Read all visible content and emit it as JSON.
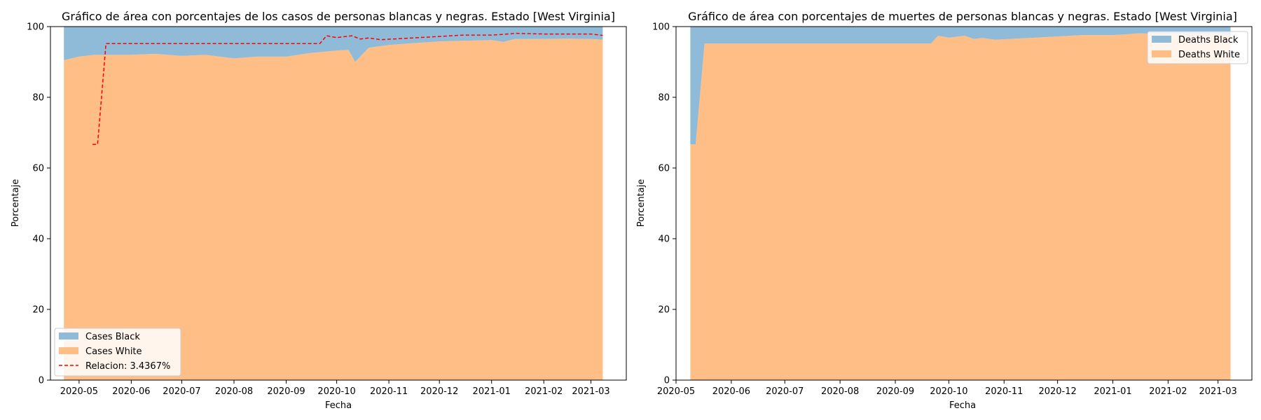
{
  "chart_data": [
    {
      "type": "area",
      "stacked": true,
      "title": "Gráfico de área con porcentajes de los casos de personas blancas y negras. Estado [West Virginia]",
      "xlabel": "Fecha",
      "ylabel": "Porcentaje",
      "ylim": [
        0,
        100
      ],
      "yticks": [
        "0",
        "20",
        "40",
        "60",
        "80",
        "100"
      ],
      "xlim": [
        "2020-04-14",
        "2021-03-22"
      ],
      "xticks": [
        "2020-05",
        "2020-06",
        "2020-07",
        "2020-08",
        "2020-09",
        "2020-10",
        "2020-11",
        "2020-12",
        "2021-01",
        "2021-02",
        "2021-03"
      ],
      "legend_position": "lower-left",
      "x": [
        "2020-04-22",
        "2020-05-01",
        "2020-05-10",
        "2020-05-20",
        "2020-06-01",
        "2020-06-15",
        "2020-07-01",
        "2020-07-15",
        "2020-08-01",
        "2020-08-15",
        "2020-09-01",
        "2020-09-15",
        "2020-10-01",
        "2020-10-08",
        "2020-10-12",
        "2020-10-20",
        "2020-11-01",
        "2020-11-15",
        "2020-12-01",
        "2020-12-15",
        "2021-01-01",
        "2021-01-08",
        "2021-01-15",
        "2021-02-01",
        "2021-02-15",
        "2021-03-01",
        "2021-03-08"
      ],
      "series": [
        {
          "name": "Cases White",
          "color": "#ffbe86",
          "values": [
            90.5,
            91.5,
            92.0,
            92.0,
            92.0,
            92.3,
            91.7,
            92.0,
            91.0,
            91.5,
            91.5,
            92.5,
            93.2,
            93.4,
            90.0,
            94.0,
            94.8,
            95.3,
            95.8,
            96.0,
            96.2,
            95.7,
            96.5,
            96.5,
            96.6,
            96.5,
            96.3
          ]
        },
        {
          "name": "Cases Black",
          "color": "#8fbbd9",
          "values": [
            9.5,
            8.5,
            8.0,
            8.0,
            8.0,
            7.7,
            8.3,
            8.0,
            9.0,
            8.5,
            8.5,
            7.5,
            6.8,
            6.6,
            10.0,
            6.0,
            5.2,
            4.7,
            4.2,
            4.0,
            3.8,
            4.3,
            3.5,
            3.5,
            3.4,
            3.5,
            3.7
          ]
        }
      ],
      "overlay": {
        "name": "Relacion: 3.4367%",
        "color": "#ff0000",
        "style": "dashed",
        "x": [
          "2020-05-09",
          "2020-05-12",
          "2020-05-17",
          "2020-06-01",
          "2020-07-01",
          "2020-08-01",
          "2020-09-01",
          "2020-09-21",
          "2020-09-25",
          "2020-10-01",
          "2020-10-10",
          "2020-10-15",
          "2020-10-20",
          "2020-10-27",
          "2020-11-15",
          "2020-12-01",
          "2020-12-15",
          "2021-01-01",
          "2021-01-08",
          "2021-01-15",
          "2021-02-01",
          "2021-02-15",
          "2021-03-01",
          "2021-03-08"
        ],
        "values": [
          66.7,
          66.7,
          95.2,
          95.2,
          95.2,
          95.2,
          95.2,
          95.2,
          97.4,
          96.9,
          97.4,
          96.5,
          96.8,
          96.3,
          96.8,
          97.2,
          97.6,
          97.6,
          97.8,
          98.1,
          97.9,
          97.9,
          97.9,
          97.5
        ]
      }
    },
    {
      "type": "area",
      "stacked": true,
      "title": "Gráfico de área con porcentajes de muertes de personas blancas y negras. Estado [West Virginia]",
      "xlabel": "Fecha",
      "ylabel": "Porcentaje",
      "ylim": [
        0,
        100
      ],
      "yticks": [
        "0",
        "20",
        "40",
        "60",
        "80",
        "100"
      ],
      "xlim": [
        "2020-05-01",
        "2021-03-20"
      ],
      "xticks": [
        "2020-05",
        "2020-06",
        "2020-07",
        "2020-08",
        "2020-09",
        "2020-10",
        "2020-11",
        "2020-12",
        "2021-01",
        "2021-02",
        "2021-03"
      ],
      "legend_position": "upper-right",
      "x": [
        "2020-05-09",
        "2020-05-12",
        "2020-05-17",
        "2020-06-01",
        "2020-07-01",
        "2020-08-01",
        "2020-09-01",
        "2020-09-21",
        "2020-09-25",
        "2020-10-01",
        "2020-10-10",
        "2020-10-15",
        "2020-10-20",
        "2020-10-27",
        "2020-11-15",
        "2020-12-01",
        "2020-12-15",
        "2021-01-01",
        "2021-01-08",
        "2021-01-15",
        "2021-02-01",
        "2021-02-15",
        "2021-03-01",
        "2021-03-08"
      ],
      "series": [
        {
          "name": "Deaths White",
          "color": "#ffbe86",
          "values": [
            66.7,
            66.7,
            95.2,
            95.2,
            95.2,
            95.2,
            95.2,
            95.2,
            97.4,
            96.9,
            97.4,
            96.5,
            96.8,
            96.3,
            96.8,
            97.2,
            97.6,
            97.6,
            97.8,
            98.1,
            97.9,
            97.9,
            97.9,
            97.5
          ]
        },
        {
          "name": "Deaths Black",
          "color": "#8fbbd9",
          "values": [
            33.3,
            33.3,
            4.8,
            4.8,
            4.8,
            4.8,
            4.8,
            4.8,
            2.6,
            3.1,
            2.6,
            3.5,
            3.2,
            3.7,
            3.2,
            2.8,
            2.4,
            2.4,
            2.2,
            1.9,
            2.1,
            2.1,
            2.1,
            2.5
          ]
        }
      ]
    }
  ]
}
